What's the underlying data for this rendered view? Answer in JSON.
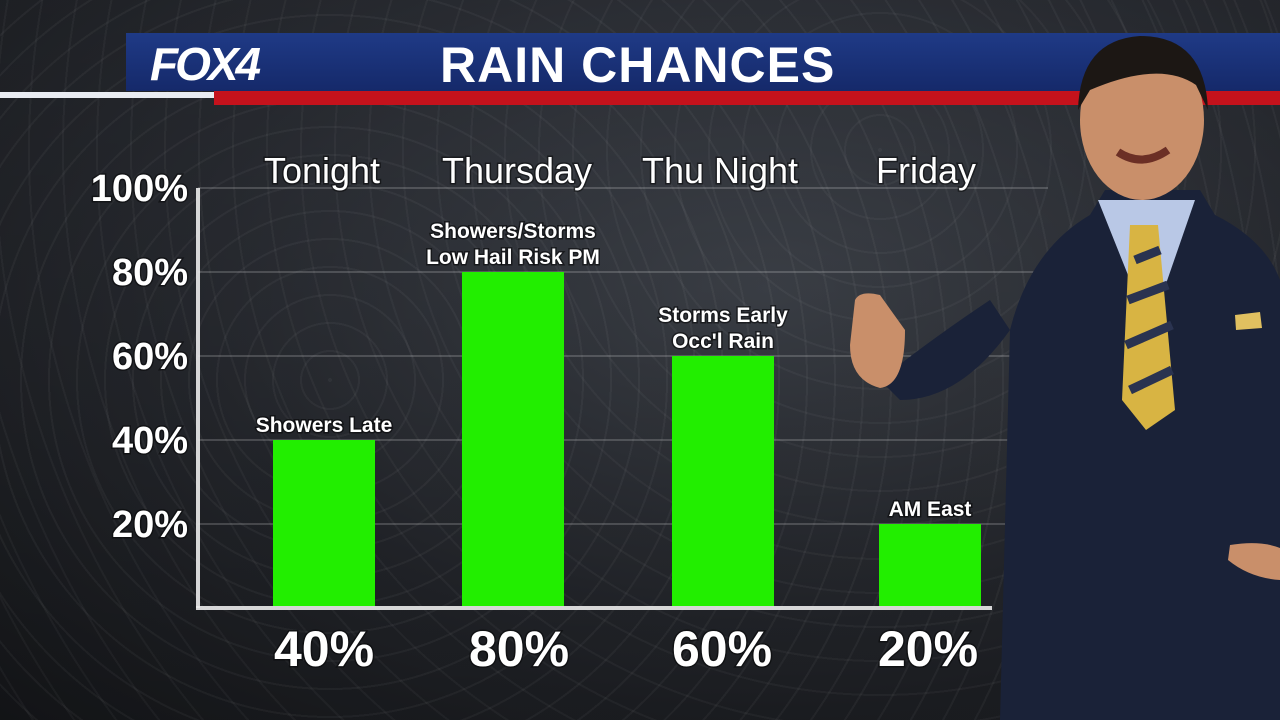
{
  "header": {
    "logo": "FOX4",
    "title": "RAIN CHANCES"
  },
  "colors": {
    "bar": "#22ee00",
    "header_blue": "#1b3178",
    "header_red": "#c4121c"
  },
  "chart_data": {
    "type": "bar",
    "title": "RAIN CHANCES",
    "categories": [
      "Tonight",
      "Thursday",
      "Thu Night",
      "Friday"
    ],
    "values": [
      40,
      80,
      60,
      20
    ],
    "value_labels": [
      "40%",
      "80%",
      "60%",
      "20%"
    ],
    "annotations": [
      [
        "Showers Late"
      ],
      [
        "Showers/Storms",
        "Low Hail Risk PM"
      ],
      [
        "Storms Early",
        "Occ'l Rain"
      ],
      [
        "AM East"
      ]
    ],
    "yticks": [
      20,
      40,
      60,
      80,
      100
    ],
    "ytick_labels": [
      "20%",
      "40%",
      "60%",
      "80%",
      "100%"
    ],
    "ylim": [
      0,
      100
    ],
    "grid": true,
    "legend": "none"
  }
}
